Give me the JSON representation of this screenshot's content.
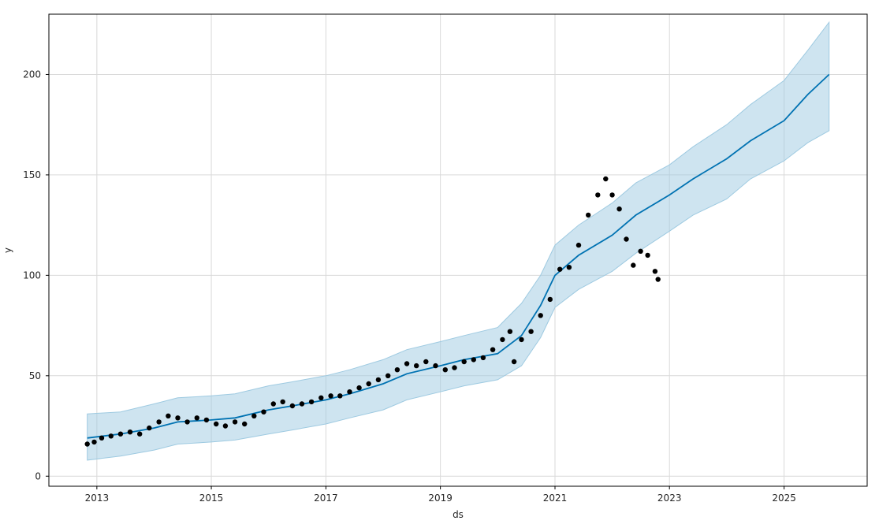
{
  "chart_data": {
    "type": "line",
    "title": "",
    "xlabel": "ds",
    "ylabel": "y",
    "xlim": [
      "2012-03-01",
      "2026-06-15"
    ],
    "ylim": [
      -5,
      230
    ],
    "x_ticks": [
      "2013",
      "2015",
      "2017",
      "2019",
      "2021",
      "2023",
      "2025"
    ],
    "y_ticks": [
      0,
      50,
      100,
      150,
      200
    ],
    "grid": true,
    "legend": "none",
    "colors": {
      "forecast_line": "#0072B2",
      "interval_band": "#9ecae1",
      "observed_points": "#000000",
      "grid": "#d9d9d9",
      "frame": "#000000"
    },
    "series": [
      {
        "kind": "observed",
        "x": [
          "2012-11-01",
          "2012-12-15",
          "2013-02-01",
          "2013-04-01",
          "2013-06-01",
          "2013-08-01",
          "2013-10-01",
          "2013-12-01",
          "2014-02-01",
          "2014-04-01",
          "2014-06-01",
          "2014-08-01",
          "2014-10-01",
          "2014-12-01",
          "2015-02-01",
          "2015-04-01",
          "2015-06-01",
          "2015-08-01",
          "2015-10-01",
          "2015-12-01",
          "2016-02-01",
          "2016-04-01",
          "2016-06-01",
          "2016-08-01",
          "2016-10-01",
          "2016-12-01",
          "2017-02-01",
          "2017-04-01",
          "2017-06-01",
          "2017-08-01",
          "2017-10-01",
          "2017-12-01",
          "2018-02-01",
          "2018-04-01",
          "2018-06-01",
          "2018-08-01",
          "2018-10-01",
          "2018-12-01",
          "2019-02-01",
          "2019-04-01",
          "2019-06-01",
          "2019-08-01",
          "2019-10-01",
          "2019-12-01",
          "2020-02-01",
          "2020-03-20",
          "2020-04-15",
          "2020-06-01",
          "2020-08-01",
          "2020-10-01",
          "2020-12-01",
          "2021-02-01",
          "2021-04-01",
          "2021-06-01",
          "2021-08-01",
          "2021-10-01",
          "2021-11-20",
          "2022-01-01",
          "2022-02-15",
          "2022-04-01",
          "2022-05-15",
          "2022-07-01",
          "2022-08-15",
          "2022-10-01",
          "2022-10-20"
        ],
        "y": [
          16,
          17,
          19,
          20,
          21,
          22,
          21,
          24,
          27,
          30,
          29,
          27,
          29,
          28,
          26,
          25,
          27,
          26,
          30,
          32,
          36,
          37,
          35,
          36,
          37,
          39,
          40,
          40,
          42,
          44,
          46,
          48,
          50,
          53,
          56,
          55,
          57,
          55,
          53,
          54,
          57,
          58,
          59,
          63,
          68,
          72,
          57,
          68,
          72,
          80,
          88,
          103,
          104,
          115,
          130,
          140,
          148,
          140,
          133,
          118,
          105,
          112,
          110,
          102,
          98
        ]
      },
      {
        "kind": "forecast",
        "x": [
          "2012-11-01",
          "2013-06-01",
          "2014-01-01",
          "2014-06-01",
          "2015-01-01",
          "2015-06-01",
          "2016-01-01",
          "2016-06-01",
          "2017-01-01",
          "2017-06-01",
          "2018-01-01",
          "2018-06-01",
          "2019-01-01",
          "2019-06-01",
          "2020-01-01",
          "2020-06-01",
          "2020-10-01",
          "2021-01-01",
          "2021-06-01",
          "2022-01-01",
          "2022-06-01",
          "2023-01-01",
          "2023-06-01",
          "2024-01-01",
          "2024-06-01",
          "2025-01-01",
          "2025-06-01",
          "2025-10-15"
        ],
        "yhat": [
          19,
          21,
          24,
          27,
          28,
          29,
          33,
          35,
          38,
          41,
          46,
          51,
          55,
          58,
          61,
          70,
          85,
          100,
          110,
          120,
          130,
          140,
          148,
          158,
          167,
          177,
          190,
          200
        ],
        "yhat_lower": [
          8,
          10,
          13,
          16,
          17,
          18,
          21,
          23,
          26,
          29,
          33,
          38,
          42,
          45,
          48,
          55,
          69,
          84,
          93,
          102,
          111,
          122,
          130,
          138,
          148,
          157,
          166,
          172
        ],
        "yhat_upper": [
          31,
          32,
          36,
          39,
          40,
          41,
          45,
          47,
          50,
          53,
          58,
          63,
          67,
          70,
          74,
          86,
          100,
          115,
          125,
          136,
          146,
          155,
          164,
          175,
          185,
          197,
          212,
          226
        ]
      }
    ]
  }
}
